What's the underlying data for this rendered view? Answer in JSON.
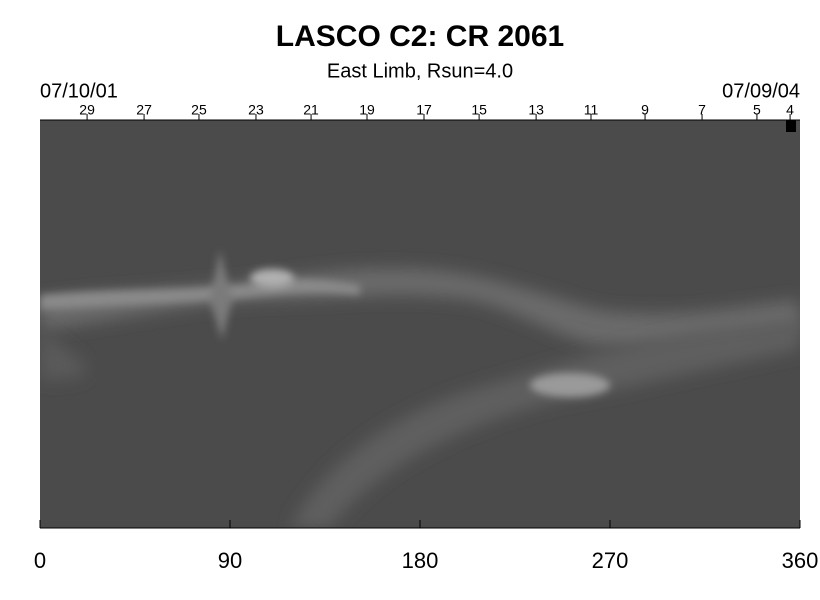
{
  "chart_data": {
    "type": "image",
    "title": "LASCO C2: CR 2061",
    "subtitle": "East Limb, Rsun=4.0",
    "start_date": "07/10/01",
    "end_date": "07/09/04",
    "xlim": [
      0,
      360
    ],
    "xticks": [
      0,
      90,
      180,
      270,
      360
    ],
    "top_ticks": [
      {
        "value": 22.3,
        "label": "29"
      },
      {
        "value": 49.3,
        "label": "27"
      },
      {
        "value": 75.3,
        "label": "25"
      },
      {
        "value": 102.3,
        "label": "23"
      },
      {
        "value": 128.4,
        "label": "21"
      },
      {
        "value": 154.9,
        "label": "19"
      },
      {
        "value": 181.9,
        "label": "17"
      },
      {
        "value": 208.0,
        "label": "15"
      },
      {
        "value": 235.0,
        "label": "13"
      },
      {
        "value": 261.0,
        "label": "11"
      },
      {
        "value": 286.6,
        "label": "9"
      },
      {
        "value": 313.6,
        "label": "7"
      },
      {
        "value": 339.6,
        "label": "5"
      },
      {
        "value": 355.3,
        "label": "4"
      }
    ]
  }
}
